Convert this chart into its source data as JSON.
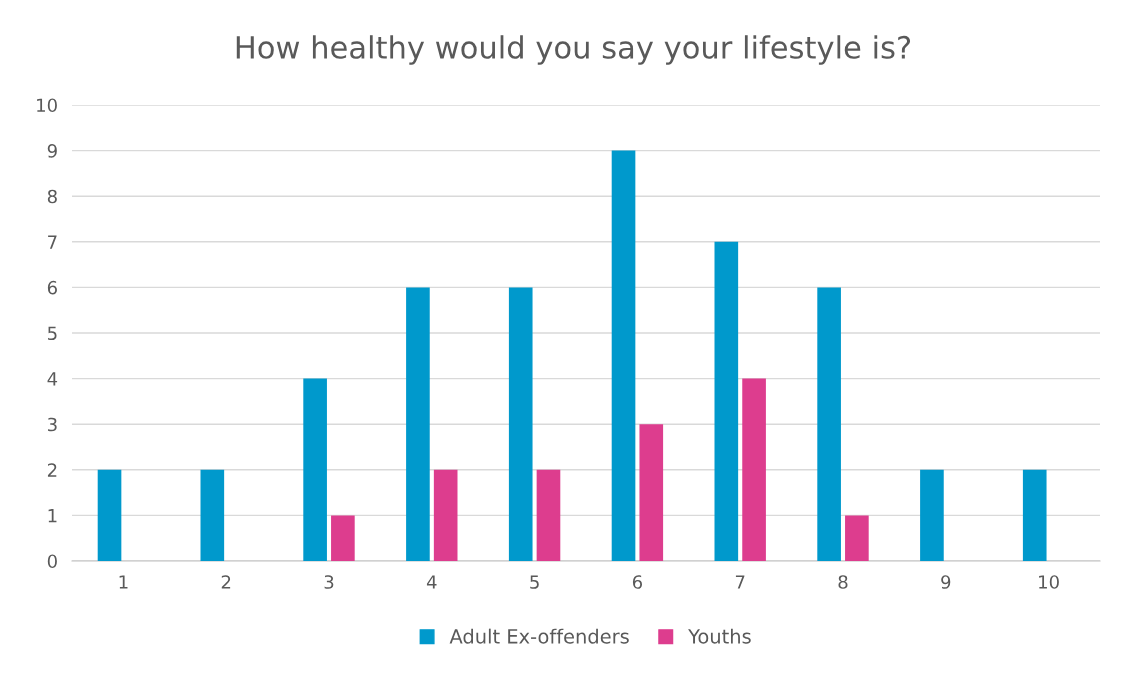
{
  "chart_data": {
    "type": "bar",
    "title": "How healthy would you say your lifestyle is?",
    "categories": [
      "1",
      "2",
      "3",
      "4",
      "5",
      "6",
      "7",
      "8",
      "9",
      "10"
    ],
    "series": [
      {
        "name": "Adult Ex-offenders",
        "color": "#0099cc",
        "values": [
          2,
          2,
          4,
          6,
          6,
          9,
          7,
          6,
          2,
          2
        ]
      },
      {
        "name": "Youths",
        "color": "#dd3d8e",
        "values": [
          0,
          0,
          1,
          2,
          2,
          3,
          4,
          1,
          0,
          0
        ]
      }
    ],
    "ylim": [
      0,
      10
    ],
    "yticks": [
      0,
      1,
      2,
      3,
      4,
      5,
      6,
      7,
      8,
      9,
      10
    ],
    "grid": "y",
    "legend": "bottom"
  }
}
